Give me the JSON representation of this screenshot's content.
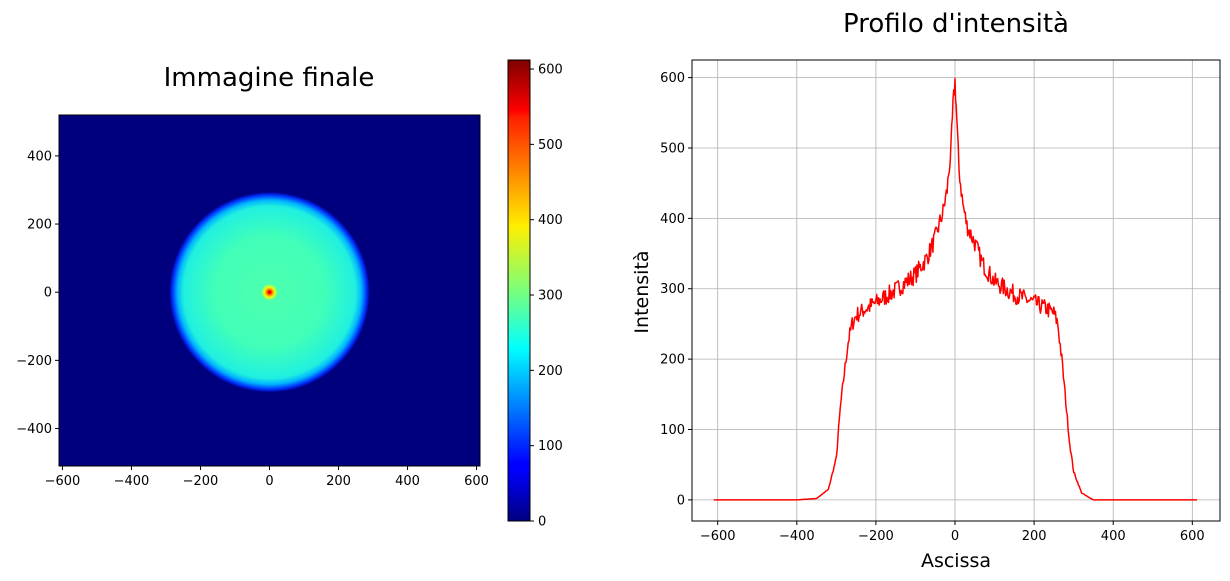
{
  "chart_data": [
    {
      "type": "heatmap",
      "title": "Immagine finale",
      "xlabel": "",
      "ylabel": "",
      "xlim": [
        -610,
        610
      ],
      "ylim": [
        -510,
        520
      ],
      "xticks": [
        "−600",
        "−400",
        "−200",
        "0",
        "200",
        "400",
        "600"
      ],
      "yticks": [
        "−400",
        "−200",
        "0",
        "200",
        "400"
      ],
      "colormap": "jet",
      "colorbar": {
        "range": [
          0,
          612
        ],
        "ticks": [
          "0",
          "100",
          "200",
          "300",
          "400",
          "500",
          "600"
        ]
      },
      "features": {
        "disk_center": [
          0,
          0
        ],
        "disk_radius": 290,
        "disk_value": 265,
        "peak_value": 600,
        "background_value": 0
      }
    },
    {
      "type": "line",
      "title": "Profilo d'intensità",
      "xlabel": "Ascissa",
      "ylabel": "Intensità",
      "xlim": [
        -665,
        670
      ],
      "ylim": [
        -30,
        625
      ],
      "grid": true,
      "xticks": [
        "−600",
        "−400",
        "−200",
        "0",
        "200",
        "400",
        "600"
      ],
      "yticks": [
        "0",
        "100",
        "200",
        "300",
        "400",
        "500",
        "600"
      ],
      "series": [
        {
          "color": "#ff0000",
          "x": [
            -610,
            -400,
            -350,
            -320,
            -300,
            -290,
            -280,
            -270,
            -260,
            -250,
            -230,
            -200,
            -150,
            -100,
            -70,
            -50,
            -30,
            -20,
            -10,
            -5,
            0,
            3,
            6,
            10,
            20,
            30,
            50,
            70,
            100,
            150,
            200,
            230,
            250,
            260,
            270,
            280,
            290,
            300,
            320,
            340,
            350,
            400,
            612
          ],
          "y": [
            0,
            0,
            2,
            15,
            60,
            130,
            180,
            225,
            250,
            262,
            270,
            280,
            298,
            320,
            345,
            372,
            410,
            440,
            500,
            560,
            595,
            560,
            520,
            470,
            420,
            390,
            365,
            335,
            310,
            292,
            280,
            272,
            265,
            250,
            200,
            140,
            80,
            40,
            10,
            3,
            0,
            0,
            0
          ]
        }
      ]
    }
  ]
}
